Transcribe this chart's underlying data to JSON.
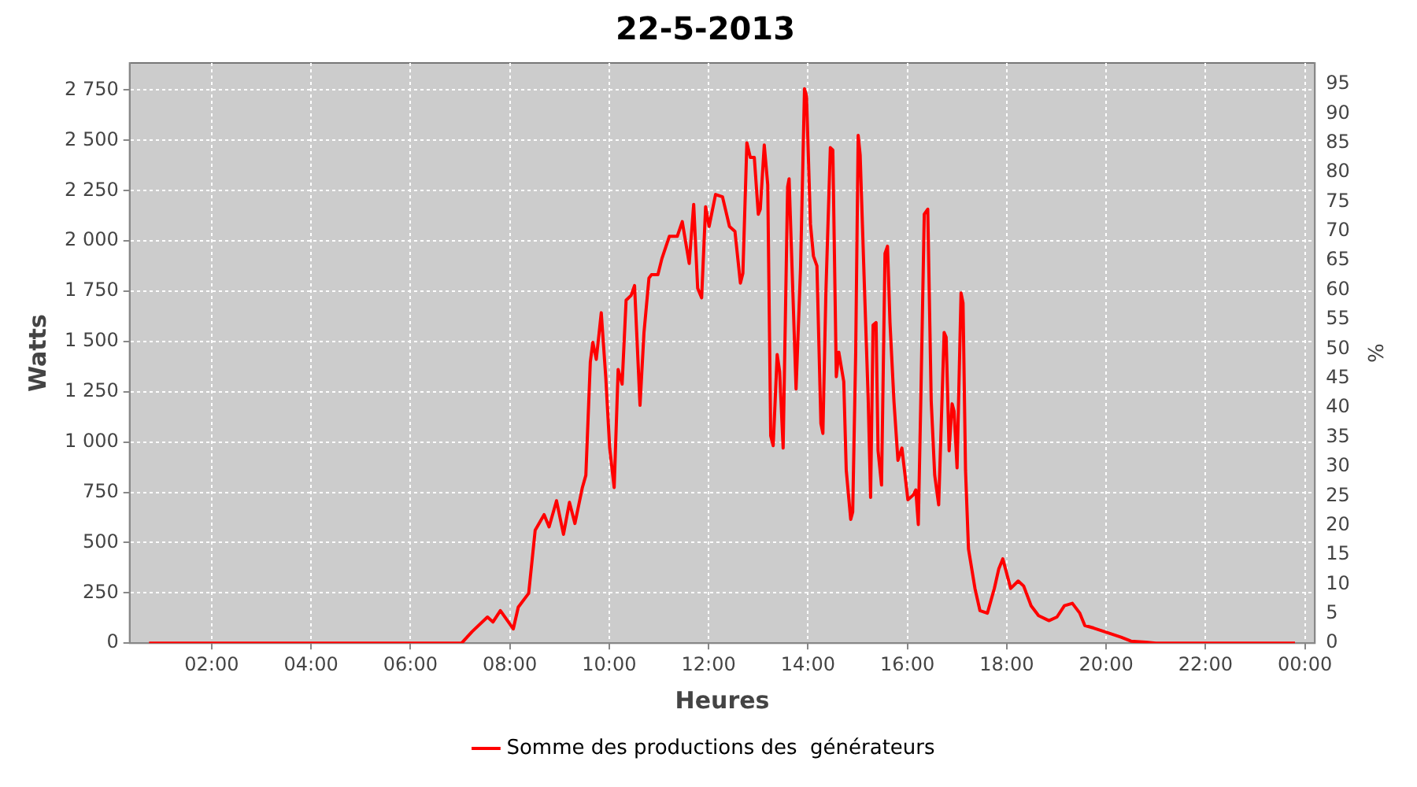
{
  "chart_data": {
    "type": "line",
    "title": "22-5-2013",
    "xlabel": "Heures",
    "ylabel": "Watts",
    "y2label": "%",
    "xlim": [
      0.35,
      24.2
    ],
    "xticks": [
      {
        "value": 2,
        "label": "02:00"
      },
      {
        "value": 4,
        "label": "04:00"
      },
      {
        "value": 6,
        "label": "06:00"
      },
      {
        "value": 8,
        "label": "08:00"
      },
      {
        "value": 10,
        "label": "10:00"
      },
      {
        "value": 12,
        "label": "12:00"
      },
      {
        "value": 14,
        "label": "14:00"
      },
      {
        "value": 16,
        "label": "16:00"
      },
      {
        "value": 18,
        "label": "18:00"
      },
      {
        "value": 20,
        "label": "20:00"
      },
      {
        "value": 22,
        "label": "22:00"
      },
      {
        "value": 24,
        "label": "00:00"
      }
    ],
    "ylim": [
      0,
      2885
    ],
    "yticks": [
      0,
      250,
      500,
      750,
      {
        "value": 1000,
        "label": "1 000"
      },
      {
        "value": 1250,
        "label": "1 250"
      },
      {
        "value": 1500,
        "label": "1 500"
      },
      {
        "value": 1750,
        "label": "1 750"
      },
      {
        "value": 2000,
        "label": "2 000"
      },
      {
        "value": 2250,
        "label": "2 250"
      },
      {
        "value": 2500,
        "label": "2 500"
      },
      {
        "value": 2750,
        "label": "2 750"
      }
    ],
    "y2lim": [
      0,
      98.6
    ],
    "y2ticks": [
      0,
      5,
      10,
      15,
      20,
      25,
      30,
      35,
      40,
      45,
      50,
      55,
      60,
      65,
      70,
      75,
      80,
      85,
      90,
      95
    ],
    "grid": true,
    "legend": "bottom",
    "x": [
      0.74,
      6.9,
      7.03,
      7.24,
      7.55,
      7.66,
      7.81,
      8.07,
      8.17,
      8.38,
      8.51,
      8.69,
      8.79,
      8.94,
      9.08,
      9.2,
      9.31,
      9.46,
      9.53,
      9.62,
      9.67,
      9.74,
      9.84,
      9.93,
      10.01,
      10.1,
      10.18,
      10.26,
      10.34,
      10.44,
      10.51,
      10.62,
      10.7,
      10.8,
      10.85,
      10.98,
      11.06,
      11.21,
      11.37,
      11.47,
      11.61,
      11.7,
      11.78,
      11.86,
      11.94,
      12.01,
      12.14,
      12.28,
      12.42,
      12.53,
      12.64,
      12.69,
      12.77,
      12.84,
      12.92,
      13.0,
      13.04,
      13.12,
      13.19,
      13.25,
      13.3,
      13.38,
      13.43,
      13.5,
      13.59,
      13.62,
      13.76,
      13.85,
      13.93,
      13.97,
      14.05,
      14.11,
      14.18,
      14.26,
      14.3,
      14.36,
      14.45,
      14.5,
      14.57,
      14.62,
      14.72,
      14.77,
      14.86,
      14.9,
      14.96,
      15.01,
      15.05,
      15.14,
      15.21,
      15.26,
      15.31,
      15.37,
      15.41,
      15.48,
      15.55,
      15.6,
      15.65,
      15.73,
      15.81,
      15.89,
      15.93,
      16.01,
      16.12,
      16.17,
      16.22,
      16.27,
      16.34,
      16.41,
      16.48,
      16.55,
      16.63,
      16.74,
      16.78,
      16.84,
      16.9,
      16.94,
      17.0,
      17.08,
      17.12,
      17.17,
      17.23,
      17.36,
      17.46,
      17.61,
      17.75,
      17.84,
      17.92,
      18.08,
      18.23,
      18.34,
      18.49,
      18.64,
      18.85,
      19.01,
      19.16,
      19.32,
      19.47,
      19.57,
      19.75,
      20.05,
      20.3,
      20.5,
      20.8,
      21.0,
      23.8
    ],
    "series": [
      {
        "name": "Somme des productions des  générateurs",
        "color": "#ff0000",
        "values": [
          0,
          0,
          0,
          57,
          130,
          105,
          162,
          71,
          179,
          248,
          561,
          639,
          578,
          708,
          541,
          700,
          595,
          774,
          835,
          1398,
          1496,
          1411,
          1643,
          1325,
          970,
          774,
          1361,
          1288,
          1705,
          1729,
          1778,
          1183,
          1545,
          1815,
          1832,
          1832,
          1912,
          2023,
          2023,
          2096,
          1888,
          2182,
          1765,
          1717,
          2170,
          2072,
          2231,
          2219,
          2072,
          2048,
          1790,
          1839,
          2488,
          2415,
          2415,
          2133,
          2158,
          2477,
          2280,
          1031,
          982,
          1435,
          1350,
          970,
          2268,
          2309,
          1264,
          1864,
          2757,
          2721,
          2084,
          1925,
          1876,
          1092,
          1043,
          1741,
          2464,
          2452,
          1325,
          1447,
          1300,
          860,
          615,
          652,
          1447,
          2525,
          2427,
          1741,
          1227,
          725,
          1582,
          1594,
          957,
          786,
          1937,
          1974,
          1594,
          1203,
          909,
          970,
          884,
          713,
          737,
          762,
          590,
          1203,
          2133,
          2158,
          1203,
          835,
          688,
          1545,
          1521,
          957,
          1190,
          1153,
          872,
          1741,
          1692,
          860,
          468,
          272,
          162,
          149,
          272,
          370,
          419,
          272,
          309,
          284,
          186,
          137,
          112,
          130,
          186,
          198,
          149,
          88,
          75,
          50,
          30,
          10,
          5,
          0,
          0
        ]
      }
    ]
  }
}
